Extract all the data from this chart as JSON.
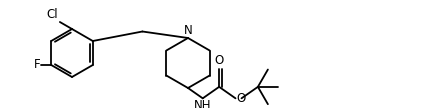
{
  "background_color": "#ffffff",
  "line_color": "#000000",
  "line_width": 1.3,
  "font_size": 8.5,
  "label_Cl": "Cl",
  "label_F": "F",
  "label_N": "N",
  "label_NH": "NH",
  "label_O_top": "O",
  "label_O_mid": "O"
}
